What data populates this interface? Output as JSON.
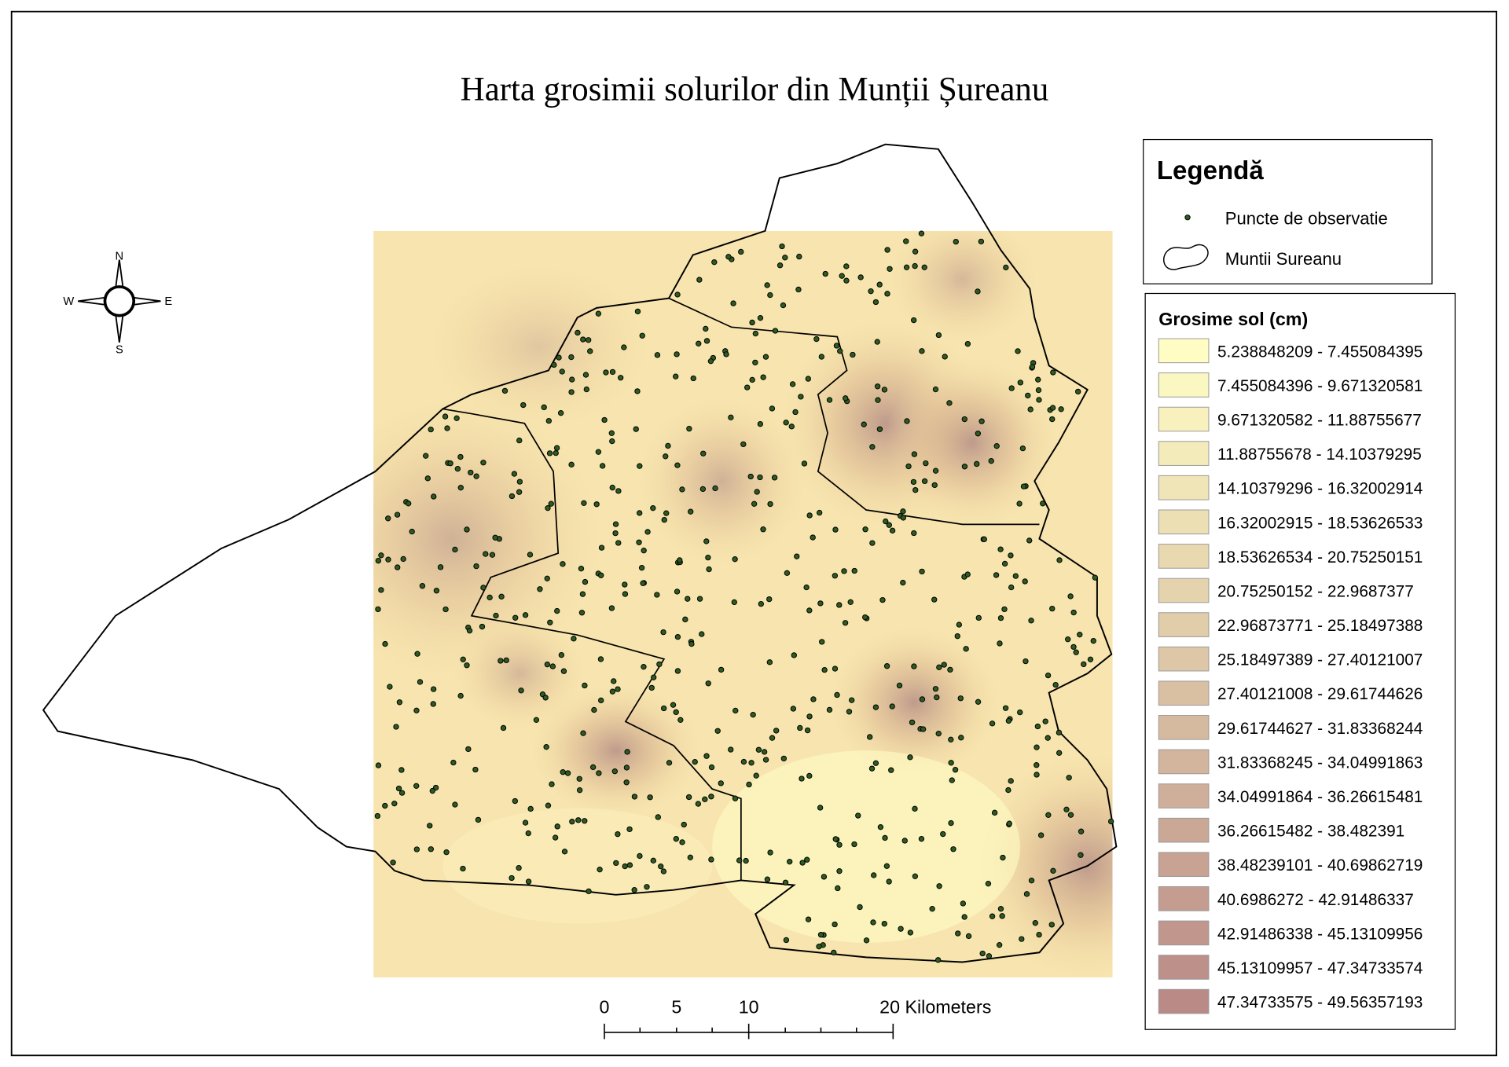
{
  "title": "Harta grosimii solurilor din Munții Șureanu",
  "compass": {
    "north": "N",
    "south": "S",
    "east": "E",
    "west": "W"
  },
  "legend": {
    "title": "Legendă",
    "items": [
      "Puncte de observatie",
      "Muntii Sureanu"
    ]
  },
  "classification": {
    "title": "Grosime sol (cm)",
    "classes": [
      "5.238848209 - 7.455084395",
      "7.455084396 - 9.671320581",
      "9.671320582 - 11.88755677",
      "11.88755678 - 14.10379295",
      "14.10379296 - 16.32002914",
      "16.32002915 - 18.53626533",
      "18.53626534 - 20.75250151",
      "20.75250152 - 22.9687377",
      "22.96873771 - 25.18497388",
      "25.18497389 - 27.40121007",
      "27.40121008 - 29.61744626",
      "29.61744627 - 31.83368244",
      "31.83368245 - 34.04991863",
      "34.04991864 - 36.26615481",
      "36.26615482 - 38.482391",
      "38.48239101 - 40.69862719",
      "40.6986272 - 42.91486337",
      "42.91486338 - 45.13109956",
      "45.13109957 - 47.34733574",
      "47.34733575 - 49.56357193"
    ]
  },
  "scale_bar": {
    "labels": [
      "0",
      "5",
      "10",
      "20 Kilometers"
    ]
  }
}
